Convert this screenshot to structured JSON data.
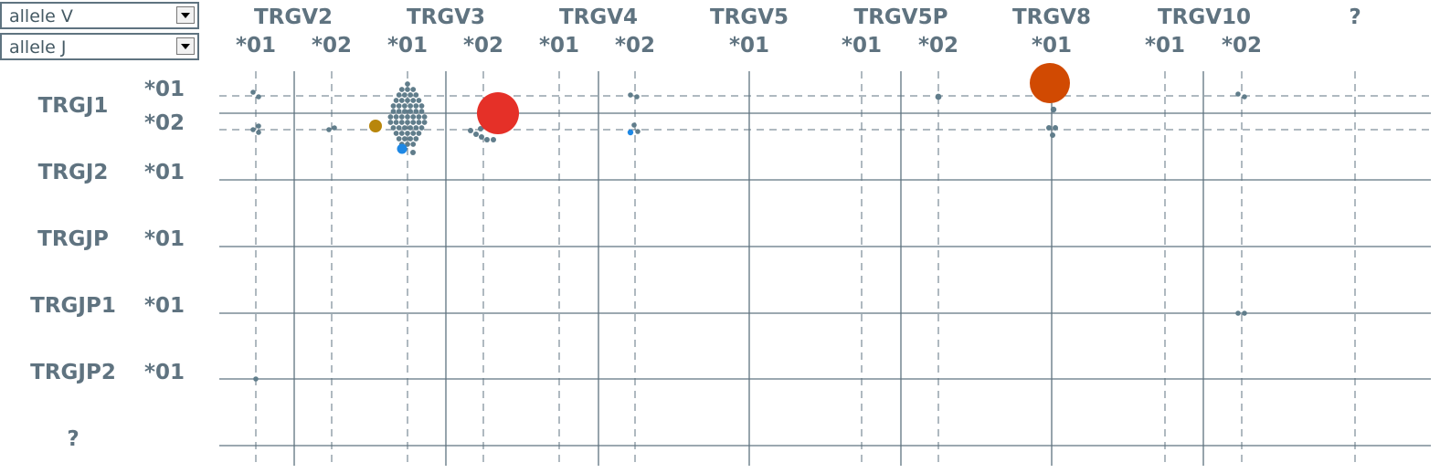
{
  "selectors": {
    "allele_v": "allele V",
    "allele_j": "allele J"
  },
  "v_genes": [
    {
      "name": "TRGV2",
      "alleles": [
        "*01",
        "*02"
      ]
    },
    {
      "name": "TRGV3",
      "alleles": [
        "*01",
        "*02"
      ]
    },
    {
      "name": "TRGV4",
      "alleles": [
        "*01",
        "*02"
      ]
    },
    {
      "name": "TRGV5",
      "alleles": [
        "*01"
      ]
    },
    {
      "name": "TRGV5P",
      "alleles": [
        "*01",
        "*02"
      ]
    },
    {
      "name": "TRGV8",
      "alleles": [
        "*01"
      ]
    },
    {
      "name": "TRGV10",
      "alleles": [
        "*01",
        "*02"
      ]
    },
    {
      "name": "?",
      "alleles": []
    }
  ],
  "j_genes": [
    {
      "name": "TRGJ1",
      "alleles": [
        "*01",
        "*02"
      ]
    },
    {
      "name": "TRGJ2",
      "alleles": [
        "*01"
      ]
    },
    {
      "name": "TRGJP",
      "alleles": [
        "*01"
      ]
    },
    {
      "name": "TRGJP1",
      "alleles": [
        "*01"
      ]
    },
    {
      "name": "TRGJP2",
      "alleles": [
        "*01"
      ]
    },
    {
      "name": "?",
      "alleles": []
    }
  ],
  "colors": {
    "grid": "#5f7380",
    "clone_default": "#607d8b",
    "clone_red": "#e53028",
    "clone_orange": "#d14a02",
    "clone_gold": "#b8860b",
    "clone_blue": "#1e88e5"
  }
}
